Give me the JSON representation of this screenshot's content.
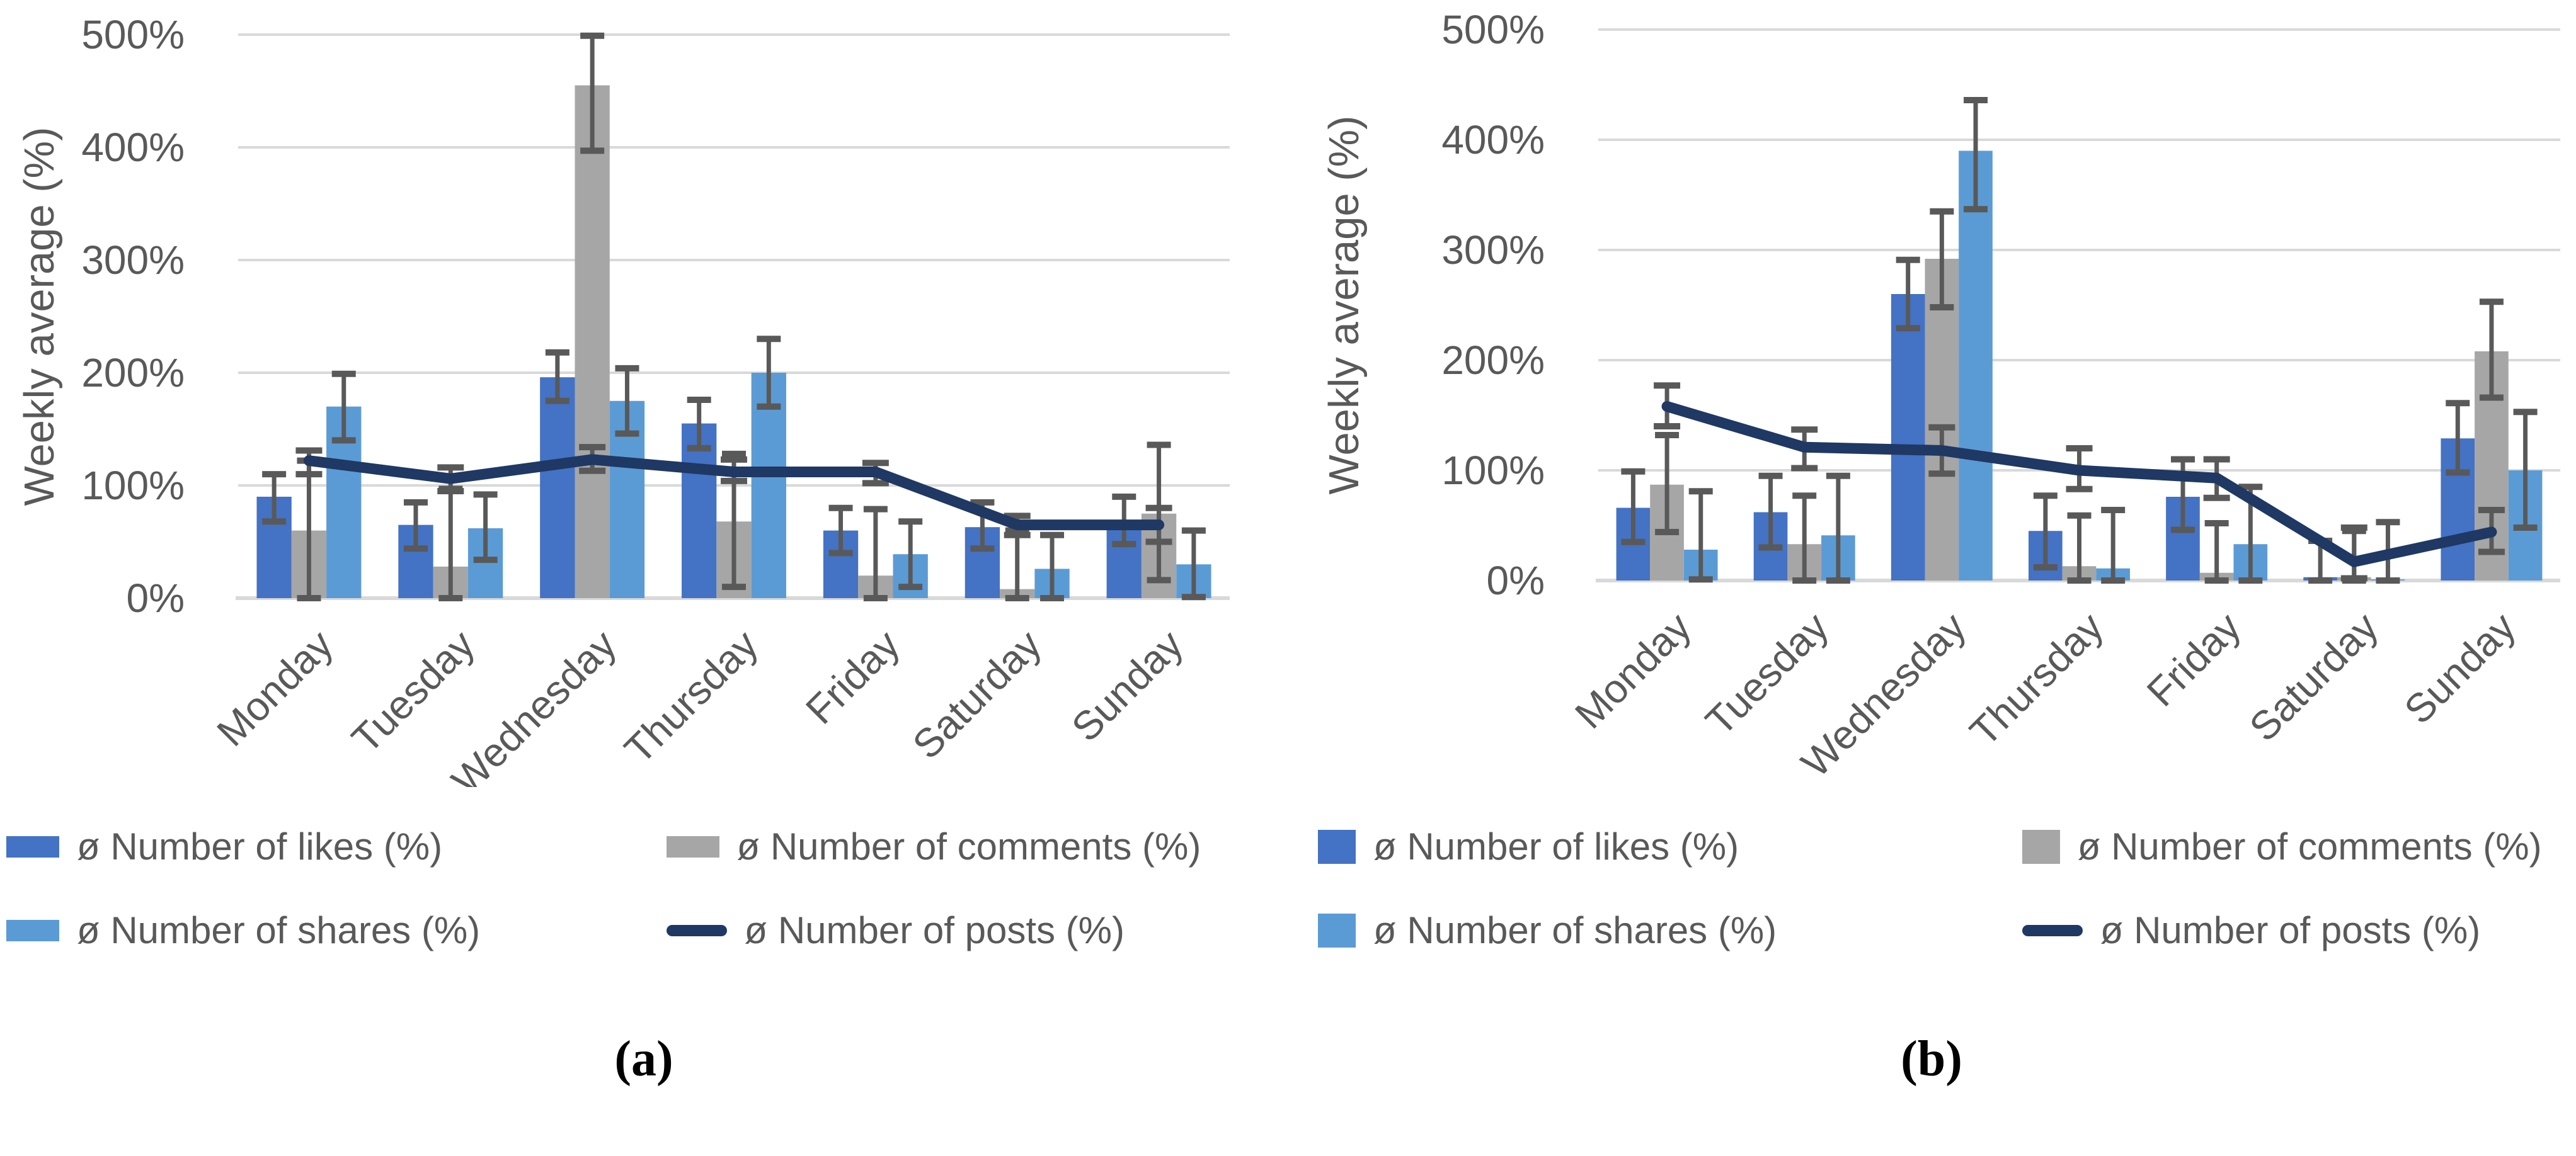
{
  "figure": {
    "panel_a_caption": "(a)",
    "panel_b_caption": "(b)"
  },
  "colors": {
    "likes": "#4472C4",
    "comments": "#A6A6A6",
    "shares": "#5B9BD5",
    "posts": "#1F3864",
    "error_bar": "#595959",
    "gridline": "#D9D9D9",
    "axis_text": "#595959"
  },
  "chart_data": [
    {
      "type": "bar+line",
      "title": "(a)",
      "ylabel": "Weekly average (%)",
      "ylim": [
        0,
        500
      ],
      "ytick_step": 100,
      "ytick_labels": [
        "0%",
        "100%",
        "200%",
        "300%",
        "400%",
        "500%"
      ],
      "grid": true,
      "legend_position": "bottom",
      "categories": [
        "Monday",
        "Tuesday",
        "Wednesday",
        "Thursday",
        "Friday",
        "Saturday",
        "Sunday"
      ],
      "bar_series": [
        {
          "name": "ø Number of likes (%)",
          "key": "likes",
          "color": "#4472C4",
          "values": [
            90,
            65,
            196,
            155,
            60,
            63,
            68
          ],
          "err_low": [
            68,
            44,
            175,
            133,
            40,
            44,
            48
          ],
          "err_high": [
            110,
            85,
            218,
            176,
            80,
            85,
            90
          ]
        },
        {
          "name": "ø Number of comments (%)",
          "key": "comments",
          "color": "#A6A6A6",
          "values": [
            60,
            28,
            455,
            68,
            20,
            8,
            75
          ],
          "err_low": [
            0,
            0,
            397,
            10,
            0,
            0,
            16
          ],
          "err_high": [
            122,
            97,
            499,
            128,
            79,
            60,
            136
          ]
        },
        {
          "name": "ø Number of shares (%)",
          "key": "shares",
          "color": "#5B9BD5",
          "values": [
            170,
            62,
            175,
            200,
            39,
            26,
            30
          ],
          "err_low": [
            140,
            34,
            146,
            170,
            10,
            0,
            1
          ],
          "err_high": [
            199,
            92,
            204,
            230,
            68,
            56,
            60
          ]
        }
      ],
      "line_series": {
        "name": "ø Number of posts (%)",
        "key": "posts",
        "color": "#1F3864",
        "values": [
          122,
          106,
          123,
          112,
          112,
          65,
          65
        ],
        "err_low": [
          110,
          95,
          113,
          104,
          102,
          56,
          50
        ],
        "err_high": [
          131,
          116,
          134,
          123,
          120,
          73,
          80
        ]
      },
      "layout": {
        "plot_left": 378,
        "plot_right": 1952,
        "y_bottom": 950,
        "y_top": 55,
        "ytitle_x": 85
      }
    },
    {
      "type": "bar+line",
      "title": "(b)",
      "ylabel": "Weekly average (%)",
      "ylim": [
        0,
        500
      ],
      "ytick_step": 100,
      "ytick_labels": [
        "0%",
        "100%",
        "200%",
        "300%",
        "400%",
        "500%"
      ],
      "grid": true,
      "legend_position": "bottom",
      "categories": [
        "Monday",
        "Tuesday",
        "Wednesday",
        "Thursday",
        "Friday",
        "Saturday",
        "Sunday"
      ],
      "bar_series": [
        {
          "name": "ø Number of likes (%)",
          "key": "likes",
          "color": "#4472C4",
          "values": [
            66,
            62,
            260,
            45,
            76,
            3,
            129
          ],
          "err_low": [
            35,
            30,
            229,
            12,
            46,
            0,
            98
          ],
          "err_high": [
            99,
            95,
            291,
            77,
            110,
            36,
            161
          ]
        },
        {
          "name": "ø Number of comments (%)",
          "key": "comments",
          "color": "#A6A6A6",
          "values": [
            87,
            33,
            292,
            13,
            7,
            3,
            208
          ],
          "err_low": [
            44,
            0,
            248,
            0,
            0,
            0,
            166
          ],
          "err_high": [
            132,
            77,
            335,
            59,
            52,
            45,
            253
          ]
        },
        {
          "name": "ø Number of shares (%)",
          "key": "shares",
          "color": "#5B9BD5",
          "values": [
            28,
            41,
            390,
            11,
            33,
            1,
            100
          ],
          "err_low": [
            1,
            0,
            337,
            0,
            0,
            0,
            48
          ],
          "err_high": [
            81,
            95,
            436,
            64,
            85,
            53,
            153
          ]
        }
      ],
      "line_series": {
        "name": "ø Number of posts (%)",
        "key": "posts",
        "color": "#1F3864",
        "values": [
          158,
          121,
          118,
          100,
          93,
          17,
          44
        ],
        "err_low": [
          140,
          102,
          97,
          83,
          75,
          2,
          26
        ],
        "err_high": [
          177,
          137,
          139,
          120,
          110,
          48,
          64
        ]
      },
      "layout": {
        "plot_left": 493,
        "plot_right": 2020,
        "y_bottom": 922,
        "y_top": 47,
        "ytitle_x": 112
      }
    }
  ]
}
